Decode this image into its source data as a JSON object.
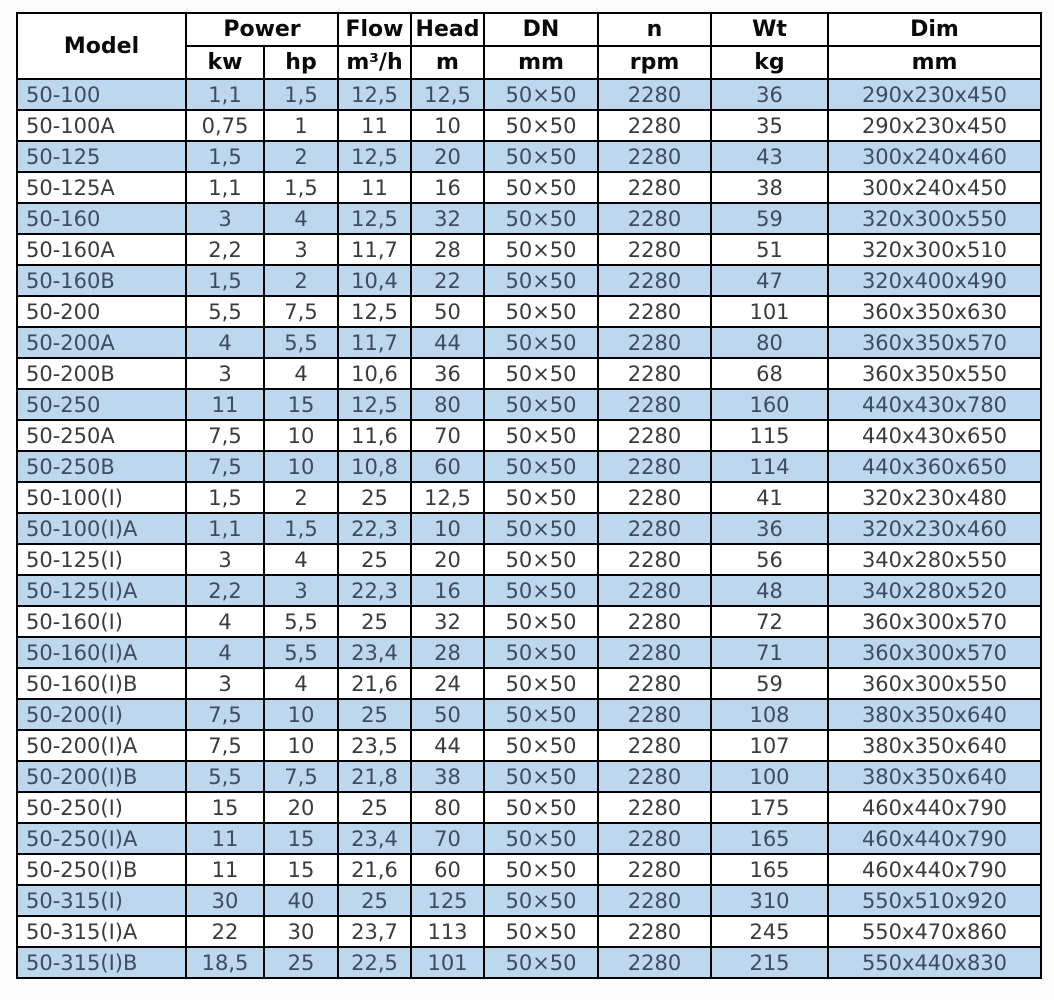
{
  "style": {
    "alt_row_bg": "#bdd7ee",
    "row_bg": "#ffffff",
    "alt_row_text": "#3e4b60",
    "row_text": "#3b3b3b",
    "header_text": "#0a0a0a",
    "border": "#000000"
  },
  "chart_data": {
    "type": "table",
    "title": "",
    "header": {
      "model": "Model",
      "power": "Power",
      "flow": "Flow",
      "head": "Head",
      "dn": "DN",
      "n": "n",
      "wt": "Wt",
      "dim": "Dim"
    },
    "units": {
      "kw": "kw",
      "hp": "hp",
      "flow": "m³/h",
      "head": "m",
      "dn": "mm",
      "n": "rpm",
      "wt": "kg",
      "dim": "mm"
    },
    "columns": [
      "Model",
      "Power kw",
      "Power hp",
      "Flow m³/h",
      "Head m",
      "DN mm",
      "n rpm",
      "Wt kg",
      "Dim mm"
    ],
    "layout": {
      "alternating_rows": true,
      "first_row_shaded": true
    },
    "rows": [
      [
        "50-100",
        "1,1",
        "1,5",
        "12,5",
        "12,5",
        "50×50",
        "2280",
        "36",
        "290x230x450"
      ],
      [
        "50-100A",
        "0,75",
        "1",
        "11",
        "10",
        "50×50",
        "2280",
        "35",
        "290x230x450"
      ],
      [
        "50-125",
        "1,5",
        "2",
        "12,5",
        "20",
        "50×50",
        "2280",
        "43",
        "300x240x460"
      ],
      [
        "50-125A",
        "1,1",
        "1,5",
        "11",
        "16",
        "50×50",
        "2280",
        "38",
        "300x240x450"
      ],
      [
        "50-160",
        "3",
        "4",
        "12,5",
        "32",
        "50×50",
        "2280",
        "59",
        "320x300x550"
      ],
      [
        "50-160A",
        "2,2",
        "3",
        "11,7",
        "28",
        "50×50",
        "2280",
        "51",
        "320x300x510"
      ],
      [
        "50-160B",
        "1,5",
        "2",
        "10,4",
        "22",
        "50×50",
        "2280",
        "47",
        "320x400x490"
      ],
      [
        "50-200",
        "5,5",
        "7,5",
        "12,5",
        "50",
        "50×50",
        "2280",
        "101",
        "360x350x630"
      ],
      [
        "50-200A",
        "4",
        "5,5",
        "11,7",
        "44",
        "50×50",
        "2280",
        "80",
        "360x350x570"
      ],
      [
        "50-200B",
        "3",
        "4",
        "10,6",
        "36",
        "50×50",
        "2280",
        "68",
        "360x350x550"
      ],
      [
        "50-250",
        "11",
        "15",
        "12,5",
        "80",
        "50×50",
        "2280",
        "160",
        "440x430x780"
      ],
      [
        "50-250A",
        "7,5",
        "10",
        "11,6",
        "70",
        "50×50",
        "2280",
        "115",
        "440x430x650"
      ],
      [
        "50-250B",
        "7,5",
        "10",
        "10,8",
        "60",
        "50×50",
        "2280",
        "114",
        "440x360x650"
      ],
      [
        "50-100(I)",
        "1,5",
        "2",
        "25",
        "12,5",
        "50×50",
        "2280",
        "41",
        "320x230x480"
      ],
      [
        "50-100(I)A",
        "1,1",
        "1,5",
        "22,3",
        "10",
        "50×50",
        "2280",
        "36",
        "320x230x460"
      ],
      [
        "50-125(I)",
        "3",
        "4",
        "25",
        "20",
        "50×50",
        "2280",
        "56",
        "340x280x550"
      ],
      [
        "50-125(I)A",
        "2,2",
        "3",
        "22,3",
        "16",
        "50×50",
        "2280",
        "48",
        "340x280x520"
      ],
      [
        "50-160(I)",
        "4",
        "5,5",
        "25",
        "32",
        "50×50",
        "2280",
        "72",
        "360x300x570"
      ],
      [
        "50-160(I)A",
        "4",
        "5,5",
        "23,4",
        "28",
        "50×50",
        "2280",
        "71",
        "360x300x570"
      ],
      [
        "50-160(I)B",
        "3",
        "4",
        "21,6",
        "24",
        "50×50",
        "2280",
        "59",
        "360x300x550"
      ],
      [
        "50-200(I)",
        "7,5",
        "10",
        "25",
        "50",
        "50×50",
        "2280",
        "108",
        "380x350x640"
      ],
      [
        "50-200(I)A",
        "7,5",
        "10",
        "23,5",
        "44",
        "50×50",
        "2280",
        "107",
        "380x350x640"
      ],
      [
        "50-200(I)B",
        "5,5",
        "7,5",
        "21,8",
        "38",
        "50×50",
        "2280",
        "100",
        "380x350x640"
      ],
      [
        "50-250(I)",
        "15",
        "20",
        "25",
        "80",
        "50×50",
        "2280",
        "175",
        "460x440x790"
      ],
      [
        "50-250(I)A",
        "11",
        "15",
        "23,4",
        "70",
        "50×50",
        "2280",
        "165",
        "460x440x790"
      ],
      [
        "50-250(I)B",
        "11",
        "15",
        "21,6",
        "60",
        "50×50",
        "2280",
        "165",
        "460x440x790"
      ],
      [
        "50-315(I)",
        "30",
        "40",
        "25",
        "125",
        "50×50",
        "2280",
        "310",
        "550x510x920"
      ],
      [
        "50-315(I)A",
        "22",
        "30",
        "23,7",
        "113",
        "50×50",
        "2280",
        "245",
        "550x470x860"
      ],
      [
        "50-315(I)B",
        "18,5",
        "25",
        "22,5",
        "101",
        "50×50",
        "2280",
        "215",
        "550x440x830"
      ]
    ]
  }
}
